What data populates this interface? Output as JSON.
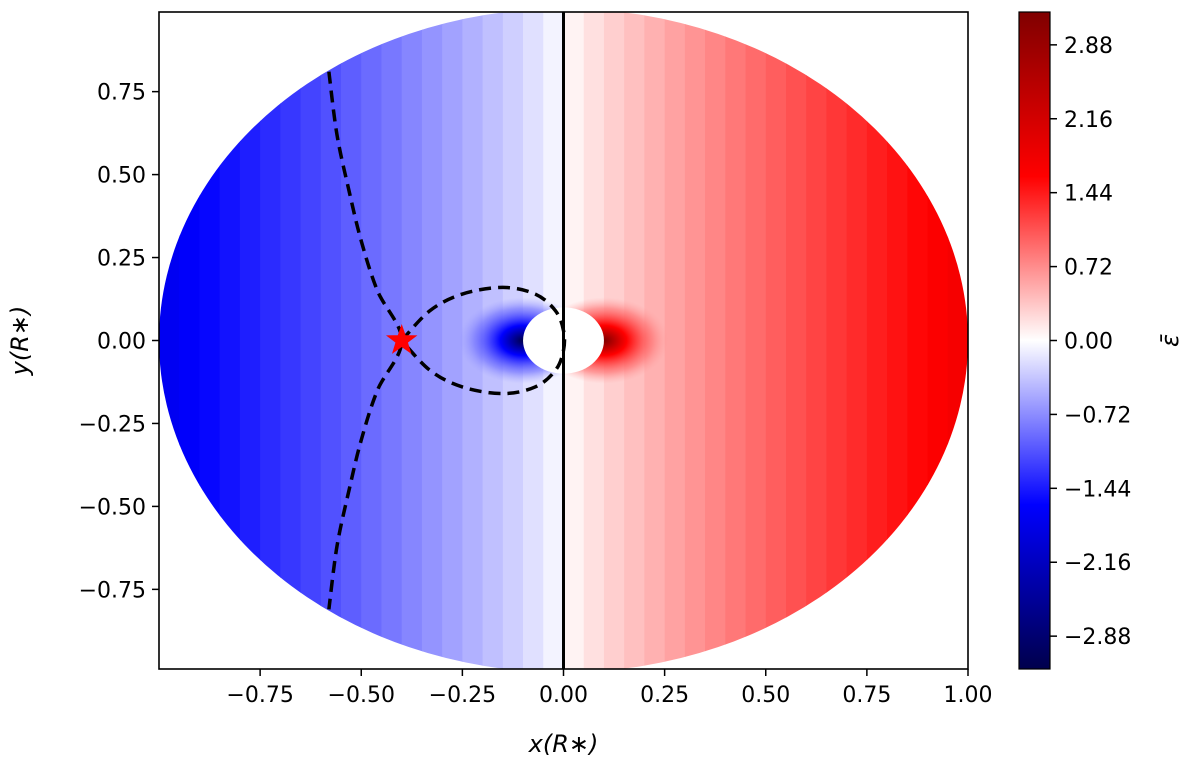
{
  "chart_data": {
    "type": "heatmap",
    "xlabel": "x(R∗)",
    "ylabel": "y(R∗)",
    "colorbar_label": "ε̄",
    "xlim": [
      -1.0,
      1.0
    ],
    "ylim": [
      -0.99,
      0.99
    ],
    "x_ticks": [
      "−0.75",
      "−0.50",
      "−0.25",
      "0.00",
      "0.25",
      "0.50",
      "0.75",
      "1.00"
    ],
    "x_tick_values": [
      -0.75,
      -0.5,
      -0.25,
      0.0,
      0.25,
      0.5,
      0.75,
      1.0
    ],
    "y_ticks": [
      "0.75",
      "0.50",
      "0.25",
      "0.00",
      "−0.25",
      "−0.50",
      "−0.75"
    ],
    "y_tick_values": [
      0.75,
      0.5,
      0.25,
      0.0,
      -0.25,
      -0.5,
      -0.75
    ],
    "colorbar_ticks": [
      "2.88",
      "2.16",
      "1.44",
      "0.72",
      "0.00",
      "−0.72",
      "−1.44",
      "−2.16",
      "−2.88"
    ],
    "colorbar_tick_values": [
      2.88,
      2.16,
      1.44,
      0.72,
      0.0,
      -0.72,
      -1.44,
      -2.16,
      -2.88
    ],
    "colorbar_range": [
      -3.2,
      3.2
    ],
    "colormap": "seismic",
    "colors": {
      "min": "#00004c",
      "low": "#0000ff",
      "mid": "#ffffff",
      "high": "#ff0000",
      "max": "#800000"
    },
    "disk_radius": 1.0,
    "inner_hole": {
      "rx": 0.1,
      "ry": 0.1
    },
    "vertical_line_x": 0.0,
    "marker": {
      "type": "star",
      "x": -0.4,
      "y": 0.0,
      "color": "#ff0000"
    },
    "dashed_loop": [
      [
        -0.4,
        0.0
      ],
      [
        -0.33,
        0.09
      ],
      [
        -0.25,
        0.14
      ],
      [
        -0.15,
        0.16
      ],
      [
        -0.07,
        0.14
      ],
      [
        -0.02,
        0.09
      ],
      [
        0.0,
        0.03
      ],
      [
        0.0,
        -0.03
      ],
      [
        -0.02,
        -0.09
      ],
      [
        -0.07,
        -0.14
      ],
      [
        -0.15,
        -0.16
      ],
      [
        -0.25,
        -0.14
      ],
      [
        -0.33,
        -0.09
      ],
      [
        -0.4,
        0.0
      ]
    ],
    "dashed_separatrix": [
      [
        -0.58,
        0.81
      ],
      [
        -0.56,
        0.62
      ],
      [
        -0.53,
        0.45
      ],
      [
        -0.5,
        0.3
      ],
      [
        -0.46,
        0.15
      ],
      [
        -0.4,
        0.0
      ],
      [
        -0.46,
        -0.15
      ],
      [
        -0.5,
        -0.3
      ],
      [
        -0.53,
        -0.45
      ],
      [
        -0.56,
        -0.62
      ],
      [
        -0.58,
        -0.81
      ]
    ],
    "grid": false
  }
}
